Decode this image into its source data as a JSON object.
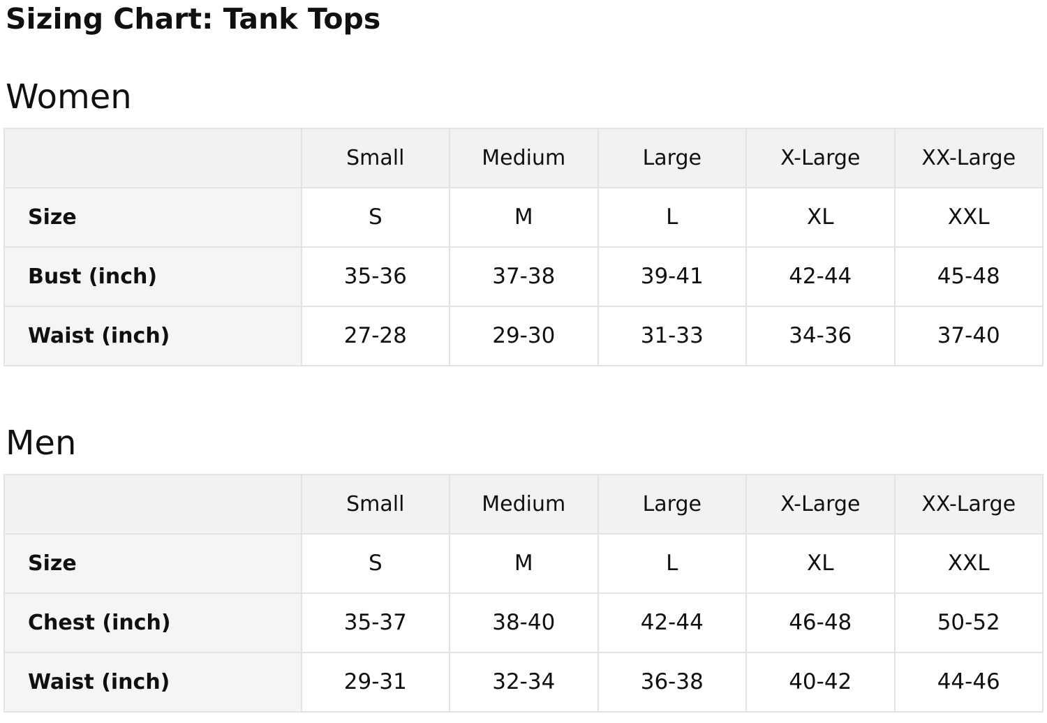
{
  "page": {
    "title": "Sizing Chart: Tank Tops"
  },
  "colors": {
    "header_bg": "#f2f2f2",
    "label_bg": "#f5f5f5",
    "border": "#e3e3e3",
    "text": "#0f1111"
  },
  "sections": [
    {
      "heading": "Women",
      "table": {
        "columns": [
          "",
          "Small",
          "Medium",
          "Large",
          "X-Large",
          "XX-Large"
        ],
        "rows": [
          {
            "label": "Size",
            "values": [
              "S",
              "M",
              "L",
              "XL",
              "XXL"
            ]
          },
          {
            "label": "Bust (inch)",
            "values": [
              "35-36",
              "37-38",
              "39-41",
              "42-44",
              "45-48"
            ]
          },
          {
            "label": "Waist (inch)",
            "values": [
              "27-28",
              "29-30",
              "31-33",
              "34-36",
              "37-40"
            ]
          }
        ]
      }
    },
    {
      "heading": "Men",
      "table": {
        "columns": [
          "",
          "Small",
          "Medium",
          "Large",
          "X-Large",
          "XX-Large"
        ],
        "rows": [
          {
            "label": "Size",
            "values": [
              "S",
              "M",
              "L",
              "XL",
              "XXL"
            ]
          },
          {
            "label": "Chest (inch)",
            "values": [
              "35-37",
              "38-40",
              "42-44",
              "46-48",
              "50-52"
            ]
          },
          {
            "label": "Waist (inch)",
            "values": [
              "29-31",
              "32-34",
              "36-38",
              "40-42",
              "44-46"
            ]
          }
        ]
      }
    }
  ]
}
